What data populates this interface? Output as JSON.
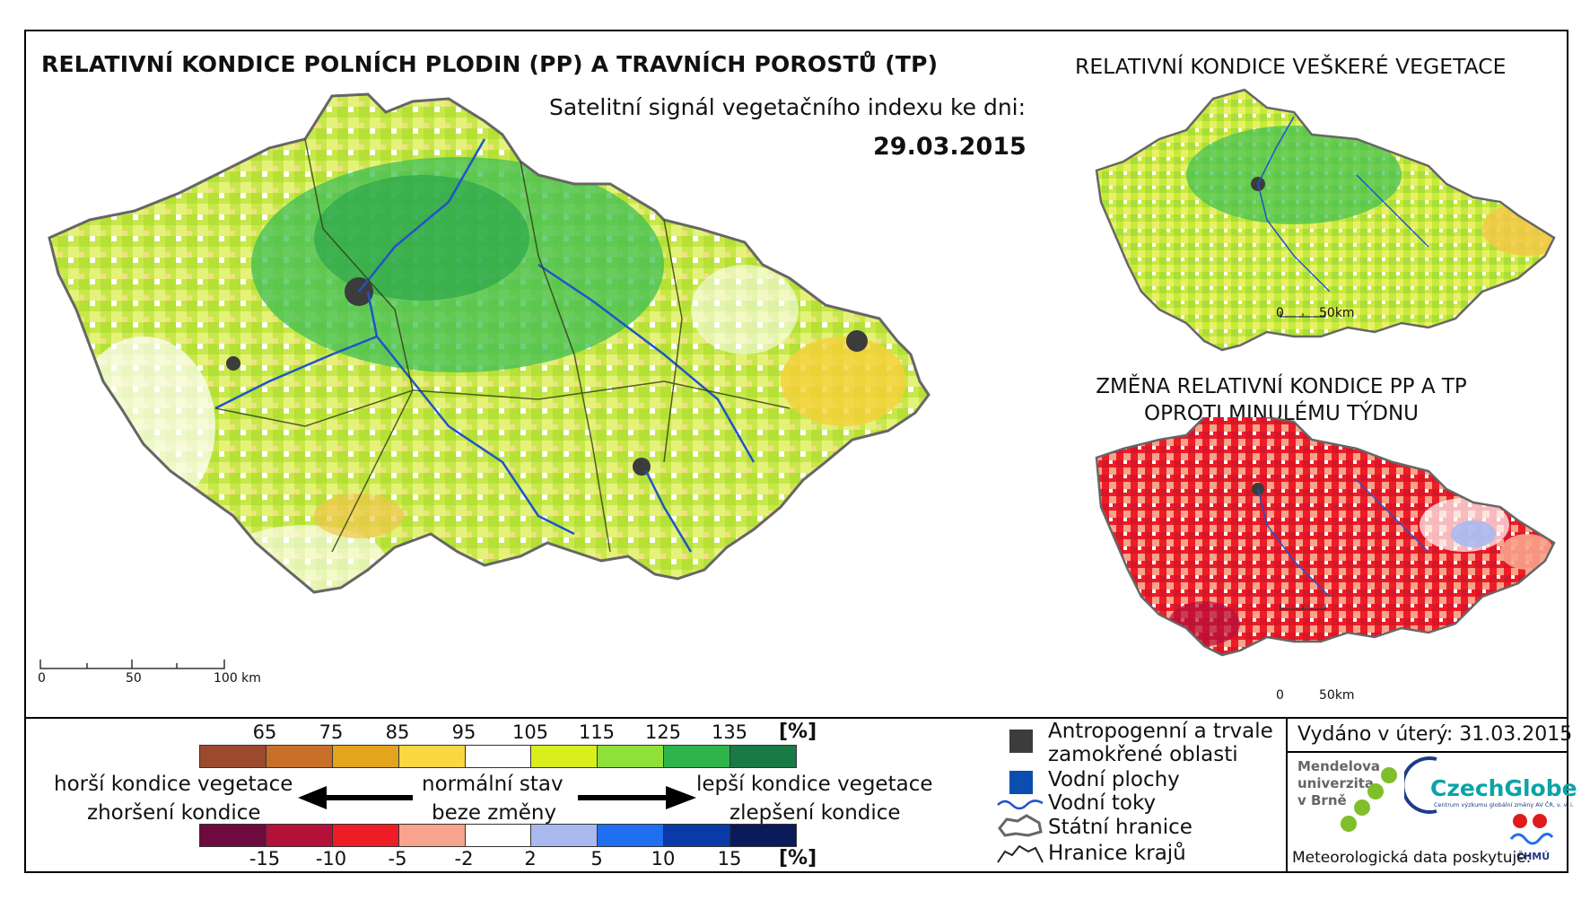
{
  "title_main": "RELATIVNÍ KONDICE POLNÍCH PLODIN (PP) A TRAVNÍCH POROSTŮ (TP)",
  "subtitle": "Satelitní signál vegetačního indexu ke dni:",
  "date": "29.03.2015",
  "title_vegetation": "RELATIVNÍ KONDICE VEŠKERÉ VEGETACE",
  "title_change": "ZMĚNA RELATIVNÍ KONDICE PP A TP OPROTI MINULÉMU TÝDNU",
  "scale_main": {
    "labels": [
      "0",
      "50",
      "100 km"
    ]
  },
  "scale_small": {
    "labels": [
      "0",
      "50km"
    ]
  },
  "scale_small2": {
    "labels": [
      "0",
      "50km"
    ]
  },
  "condition_legend": {
    "ticks": [
      "65",
      "75",
      "85",
      "95",
      "105",
      "115",
      "125",
      "135"
    ],
    "unit": "[%]",
    "colors": [
      "#9b4a2f",
      "#c8702a",
      "#e3a41e",
      "#f8d740",
      "#ffffff",
      "#d9ee1d",
      "#8fe03a",
      "#2fb44c",
      "#1a7a45"
    ]
  },
  "change_legend": {
    "ticks": [
      "-15",
      "-10",
      "-5",
      "-2",
      "2",
      "5",
      "10",
      "15"
    ],
    "unit": "[%]",
    "colors": [
      "#6e0a3f",
      "#b5103a",
      "#ee1c25",
      "#f8a38c",
      "#ffffff",
      "#a9b9f0",
      "#1f6ff0",
      "#0a3aa8",
      "#0a1a5a"
    ]
  },
  "arrow_labels": {
    "left_top": "horší kondice vegetace",
    "left_bottom": "zhoršení kondice",
    "center_top": "normální stav",
    "center_bottom": "beze změny",
    "right_top": "lepší kondice vegetace",
    "right_bottom": "zlepšení kondice"
  },
  "symbol_legend": {
    "anthropogenic_1": "Antropogenní a trvale",
    "anthropogenic_2": "zamokřené oblasti",
    "water_bodies": "Vodní plochy",
    "rivers": "Vodní toky",
    "state_border": "Státní hranice",
    "region_border": "Hranice krajů",
    "colors": {
      "anthropogenic": "#3c3c3c",
      "water": "#0a4fb0",
      "river": "#1f55c8"
    }
  },
  "issued": "Vydáno v úterý: 31.03.2015",
  "logos": {
    "mendel_1": "Mendelova",
    "mendel_2": "univerzita",
    "mendel_3": "v Brně",
    "czechglobe": "CzechGlobe",
    "czechglobe_sub": "Centrum výzkumu globální změny AV ČR, v. v. i.",
    "chmu": "ČHMÚ",
    "meteo_credit": "Meteorologická data poskytuje:"
  }
}
